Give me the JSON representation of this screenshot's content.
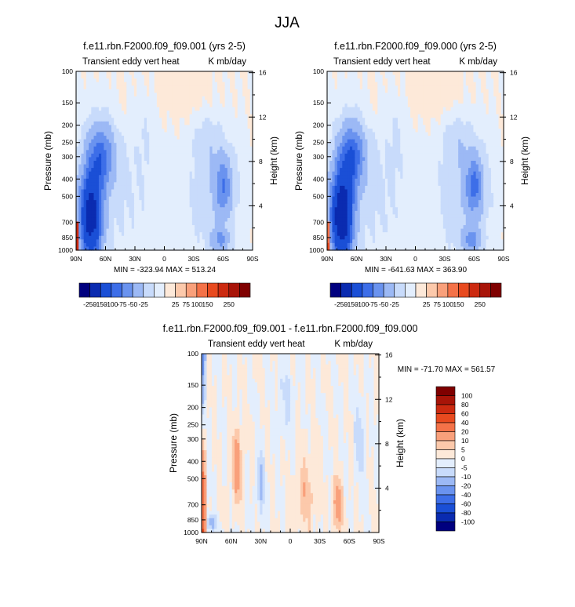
{
  "page": {
    "title": "JJA"
  },
  "palette": {
    "panel_top": [
      "#00007f",
      "#0a2bb0",
      "#1a4fd6",
      "#3d6ee8",
      "#6a93ef",
      "#9cb9f5",
      "#c8dbfb",
      "#e3eefd",
      "#fde9d9",
      "#fcc9ab",
      "#f9a07b",
      "#f47248",
      "#e84a1f",
      "#cc2a10",
      "#a81408",
      "#7f0000"
    ],
    "panel_diff": [
      "#00007f",
      "#0a2bb0",
      "#1a4fd6",
      "#3d6ee8",
      "#6a93ef",
      "#9cb9f5",
      "#c8dbfb",
      "#e3eefd",
      "#fde9d9",
      "#fcc9ab",
      "#f9a07b",
      "#f47248",
      "#e84a1f",
      "#cc2a10",
      "#a81408",
      "#7f0000"
    ]
  },
  "chart_data": [
    {
      "type": "heatmap",
      "title": "f.e11.rbn.F2000.f09_f09.001 (yrs 2-5)",
      "subtitle_left": "Transient eddy vert heat",
      "subtitle_right": "K mb/day",
      "ylabel": "Pressure (mb)",
      "ylabel_right": "Height (km)",
      "x_ticks": [
        "90N",
        "60N",
        "30N",
        "0",
        "30S",
        "60S",
        "90S"
      ],
      "y_ticks": [
        "100",
        "150",
        "200",
        "250",
        "300",
        "400",
        "500",
        "700",
        "850",
        "1000"
      ],
      "y_ticks_right": [
        "16",
        "12",
        "8",
        "4"
      ],
      "stats": "MIN = -323.94   MAX = 513.24",
      "colorbar_labels": [
        "-250",
        "-150",
        "-100",
        "-75",
        "-50",
        "-25",
        "25",
        "75",
        "100",
        "150",
        "250"
      ]
    },
    {
      "type": "heatmap",
      "title": "f.e11.rbn.F2000.f09_f09.000 (yrs 2-5)",
      "subtitle_left": "Transient eddy vert heat",
      "subtitle_right": "K mb/day",
      "ylabel": "Pressure (mb)",
      "ylabel_right": "Height (km)",
      "x_ticks": [
        "90N",
        "60N",
        "30N",
        "0",
        "30S",
        "60S",
        "90S"
      ],
      "y_ticks": [
        "100",
        "150",
        "200",
        "250",
        "300",
        "400",
        "500",
        "700",
        "850",
        "1000"
      ],
      "y_ticks_right": [
        "16",
        "12",
        "8",
        "4"
      ],
      "stats": "MIN = -641.63   MAX = 363.90",
      "colorbar_labels": [
        "-250",
        "-150",
        "-100",
        "-75",
        "-50",
        "-25",
        "25",
        "75",
        "100",
        "150",
        "250"
      ]
    },
    {
      "type": "heatmap",
      "title": "f.e11.rbn.F2000.f09_f09.001 - f.e11.rbn.F2000.f09_f09.000",
      "subtitle_left": "Transient eddy vert heat",
      "subtitle_right": "K mb/day",
      "ylabel": "Pressure (mb)",
      "ylabel_right": "Height (km)",
      "x_ticks": [
        "90N",
        "60N",
        "30N",
        "0",
        "30S",
        "60S",
        "90S"
      ],
      "y_ticks": [
        "100",
        "150",
        "200",
        "250",
        "300",
        "400",
        "500",
        "700",
        "850",
        "1000"
      ],
      "y_ticks_right": [
        "16",
        "12",
        "8",
        "4"
      ],
      "stats": "MIN = -71.70   MAX = 561.57",
      "colorbar_labels": [
        "100",
        "80",
        "60",
        "40",
        "20",
        "10",
        "5",
        "0",
        "-5",
        "-10",
        "-20",
        "-40",
        "-60",
        "-80",
        "-100"
      ]
    }
  ]
}
